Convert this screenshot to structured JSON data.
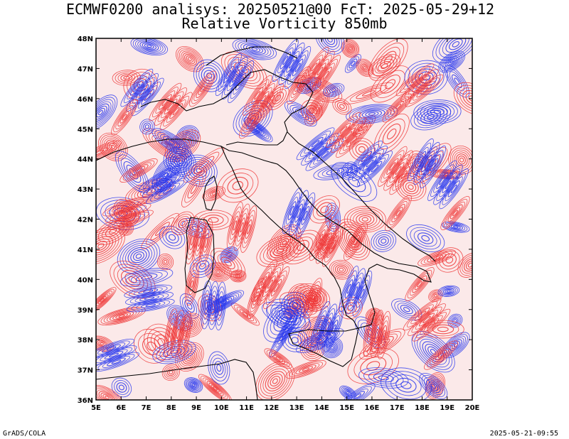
{
  "chart_data": {
    "type": "contour-map",
    "title_line1": "ECMWF0200 analisys: 20250521@00 FcT: 2025-05-29+12",
    "title_line2": "Relative Vorticity 850mb",
    "x_ticks": [
      "5E",
      "6E",
      "7E",
      "8E",
      "9E",
      "10E",
      "11E",
      "12E",
      "13E",
      "14E",
      "15E",
      "16E",
      "17E",
      "18E",
      "19E",
      "20E"
    ],
    "y_ticks": [
      "36N",
      "37N",
      "38N",
      "39N",
      "40N",
      "41N",
      "42N",
      "43N",
      "44N",
      "45N",
      "46N",
      "47N",
      "48N"
    ],
    "lon_range": [
      5,
      20
    ],
    "lat_range": [
      36,
      48
    ],
    "positive_color": "#ee3333",
    "negative_color": "#2233ee",
    "coastline_color": "#000000"
  },
  "footer": {
    "left": "GrADS/COLA",
    "right": "2025-05-21-09:55"
  }
}
